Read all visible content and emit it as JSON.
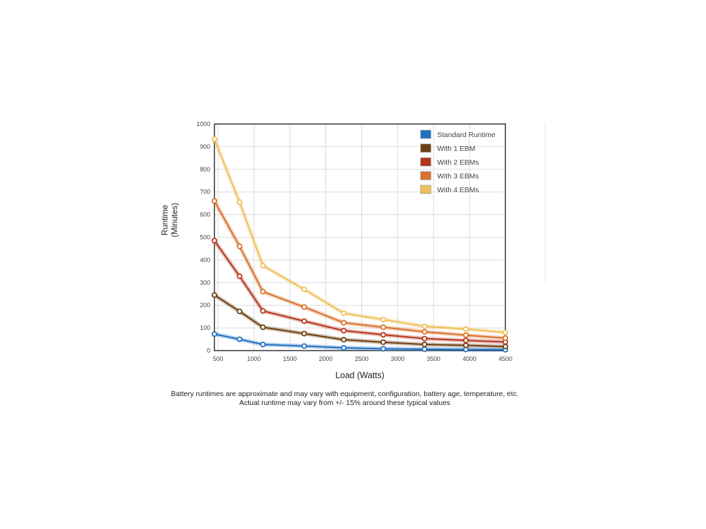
{
  "chart_data": {
    "type": "line",
    "title": "",
    "xlabel": "Load (Watts)",
    "ylabel": "Runtime\n(Minutes)",
    "xlim": [
      450,
      4500
    ],
    "ylim": [
      0,
      1000
    ],
    "x_ticks": [
      500,
      1000,
      1500,
      2000,
      2500,
      3000,
      3500,
      4000,
      4500
    ],
    "y_ticks": [
      0,
      100,
      200,
      300,
      400,
      500,
      600,
      700,
      800,
      900,
      1000
    ],
    "grid": true,
    "legend_position": "top-right",
    "x": [
      450,
      800,
      1125,
      1700,
      2250,
      2800,
      3375,
      3950,
      4500
    ],
    "series": [
      {
        "name": "Standard Runtime",
        "color": "#1f6fc4",
        "values": [
          73,
          50,
          27,
          20,
          12,
          8,
          6,
          5,
          4
        ]
      },
      {
        "name": "With 1 EBM",
        "color": "#6b3d0f",
        "values": [
          245,
          173,
          103,
          75,
          48,
          37,
          27,
          23,
          18
        ]
      },
      {
        "name": "With 2 EBMs",
        "color": "#b5341c",
        "values": [
          485,
          328,
          175,
          130,
          88,
          70,
          53,
          45,
          38
        ]
      },
      {
        "name": "With 3 EBMs",
        "color": "#d9702a",
        "values": [
          660,
          460,
          260,
          192,
          123,
          103,
          83,
          68,
          55
        ]
      },
      {
        "name": "With 4 EBMs",
        "color": "#efc05a",
        "values": [
          933,
          655,
          375,
          270,
          165,
          137,
          107,
          95,
          80
        ]
      }
    ]
  },
  "caption": {
    "line1": "Battery runtimes are approximate and may vary with equipment, configuration, battery age, temperature, etc.",
    "line2": "Actual runtime may vary from +/- 15% around these typical values"
  }
}
